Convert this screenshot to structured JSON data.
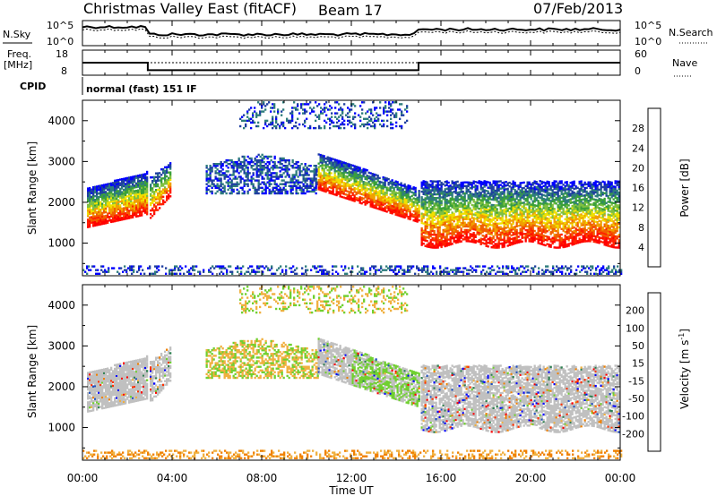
{
  "header": {
    "station": "Christmas Valley East (fitACF)",
    "beam": "Beam 17",
    "date": "07/Feb/2013"
  },
  "noise_panel": {
    "left_label": "N.Sky",
    "left_ticks": [
      "10^5",
      "10^0"
    ],
    "right_ticks": [
      "10^5",
      "10^0"
    ],
    "right_label": "N.Search"
  },
  "freq_panel": {
    "left_label_1": "Freq.",
    "left_label_2": "[MHz]",
    "left_ticks": [
      "18",
      "8"
    ],
    "right_ticks": [
      "60",
      "0"
    ],
    "right_label": "Nave"
  },
  "cpid": {
    "label": "CPID",
    "mode": "normal (fast) 151 IF"
  },
  "colors": {
    "power_scale": [
      "#0000ff",
      "#1f3fa0",
      "#2e7d7d",
      "#3aa03a",
      "#7fc040",
      "#f0e000",
      "#f0a000",
      "#f06000",
      "#ff2000",
      "#ff0000"
    ],
    "velocity_scale": [
      "#0000ff",
      "#2050c0",
      "#2e8050",
      "#70d030",
      "#c8c8c8",
      "#c8c8c8",
      "#f0b040",
      "#f08000",
      "#ff3000",
      "#ff0000"
    ],
    "ground_scatter": "#c0c0c0"
  },
  "chart_data": [
    {
      "type": "line",
      "title": "Christmas Valley East (fitACF)",
      "panel": "noise",
      "y_scale": "log",
      "ylim": [
        "10^0",
        "10^5"
      ],
      "series": [
        {
          "name": "N.Sky",
          "style": "solid"
        },
        {
          "name": "N.Search",
          "style": "dotted"
        }
      ]
    },
    {
      "type": "line",
      "panel": "frequency",
      "ylim_left": [
        8,
        18
      ],
      "ylim_right": [
        0,
        60
      ],
      "series": [
        {
          "name": "Freq. [MHz]",
          "style": "solid",
          "x": [
            "00:00",
            "02:55",
            "02:55",
            "15:00",
            "15:00",
            "24:00"
          ],
          "values": [
            13,
            13,
            10,
            10,
            13,
            13
          ]
        },
        {
          "name": "Nave",
          "style": "dotted",
          "x": [
            "00:00",
            "24:00"
          ],
          "values": [
            30,
            30
          ]
        }
      ]
    },
    {
      "type": "heatmap",
      "panel": "power",
      "xlabel": "Time UT",
      "ylabel": "Slant Range [km]",
      "xlim": [
        "00:00",
        "24:00"
      ],
      "ylim": [
        200,
        4500
      ],
      "x_ticks": [
        "00:00",
        "04:00",
        "08:00",
        "12:00",
        "16:00",
        "20:00",
        "00:00"
      ],
      "y_ticks": [
        "1000",
        "2000",
        "3000",
        "4000"
      ],
      "colorbar": {
        "label": "Power [dB]",
        "range": [
          0,
          32
        ],
        "ticks": [
          "4",
          "8",
          "12",
          "16",
          "20",
          "24",
          "28"
        ]
      }
    },
    {
      "type": "heatmap",
      "panel": "velocity",
      "xlabel": "Time UT",
      "ylabel": "Slant Range [km]",
      "xlim": [
        "00:00",
        "24:00"
      ],
      "ylim": [
        200,
        4500
      ],
      "x_ticks": [
        "00:00",
        "04:00",
        "08:00",
        "12:00",
        "16:00",
        "20:00",
        "00:00"
      ],
      "y_ticks": [
        "1000",
        "2000",
        "3000",
        "4000"
      ],
      "colorbar": {
        "label": "Velocity [m s^-1]",
        "range": [
          -250,
          250
        ],
        "ticks": [
          "200",
          "100",
          "50",
          "15",
          "-15",
          "-50",
          "-100",
          "-200"
        ]
      }
    }
  ],
  "x_axis": {
    "label": "Time UT",
    "ticks": [
      "00:00",
      "04:00",
      "08:00",
      "12:00",
      "16:00",
      "20:00",
      "00:00"
    ]
  },
  "power_panel": {
    "ylabel": "Slant Range [km]",
    "y_ticks": [
      "1000",
      "2000",
      "3000",
      "4000"
    ],
    "cb_label": "Power [dB]",
    "cb_ticks": [
      "4",
      "8",
      "12",
      "16",
      "20",
      "24",
      "28"
    ]
  },
  "velocity_panel": {
    "ylabel": "Slant Range [km]",
    "y_ticks": [
      "1000",
      "2000",
      "3000",
      "4000"
    ],
    "cb_label": "Velocity [m s",
    "cb_label_sup": "-1",
    "cb_label_end": "]",
    "cb_ticks": [
      "200",
      "100",
      "50",
      "15",
      "-15",
      "-50",
      "-100",
      "-200"
    ]
  }
}
